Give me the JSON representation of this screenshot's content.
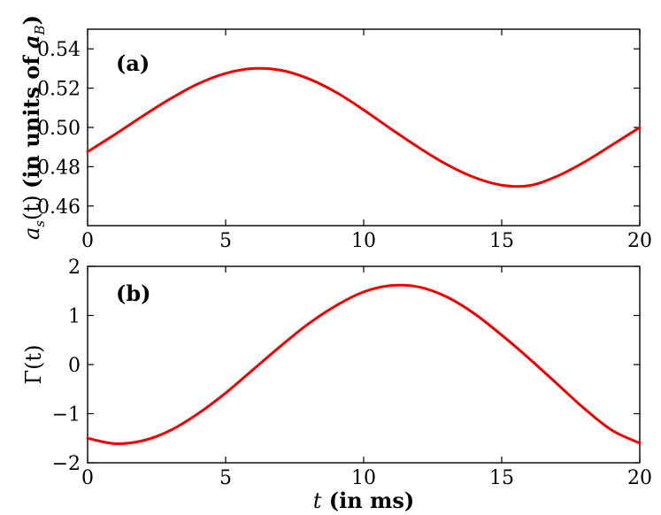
{
  "colors": {
    "curve": "#ee0000",
    "axes": "#000000",
    "background": "#ffffff"
  },
  "chart_data": [
    {
      "type": "line",
      "panel_label": "(a)",
      "ylabel": "a_s(t) (in units of a_B)",
      "ylabel_parts": {
        "var": "a",
        "sub": "s",
        "arg": "(t) ",
        "bold": "(in units of ",
        "var2": "a",
        "sub2": "B",
        "close": ")"
      },
      "xlim": [
        0,
        20
      ],
      "ylim": [
        0.45,
        0.55
      ],
      "x_ticks": [
        0,
        5,
        10,
        15,
        20
      ],
      "x_tick_labels": [
        "0",
        "5",
        "10",
        "15",
        "20"
      ],
      "y_ticks": [
        0.46,
        0.48,
        0.5,
        0.52,
        0.54
      ],
      "y_tick_labels": [
        "0.46",
        "0.48",
        "0.50",
        "0.52",
        "0.54"
      ],
      "series": [
        {
          "x": [
            0,
            1,
            2,
            3,
            4,
            5,
            6,
            7,
            8,
            9,
            10,
            11,
            12,
            13,
            14,
            15,
            16,
            17,
            18,
            19,
            20
          ],
          "y": [
            0.4876,
            0.4965,
            0.5058,
            0.5146,
            0.5222,
            0.5275,
            0.53,
            0.5291,
            0.5248,
            0.5179,
            0.5089,
            0.4991,
            0.4897,
            0.4812,
            0.4746,
            0.4706,
            0.4704,
            0.4751,
            0.4824,
            0.4911,
            0.5
          ]
        }
      ]
    },
    {
      "type": "line",
      "panel_label": "(b)",
      "ylabel": "Γ(t)",
      "xlabel": "t (in ms)",
      "xlabel_parts": {
        "var": "t",
        "rest": " (in ms)"
      },
      "xlim": [
        0,
        20
      ],
      "ylim": [
        -2,
        2
      ],
      "x_ticks": [
        0,
        5,
        10,
        15,
        20
      ],
      "x_tick_labels": [
        "0",
        "5",
        "10",
        "15",
        "20"
      ],
      "y_ticks": [
        -2,
        -1,
        0,
        1,
        2
      ],
      "y_tick_labels": [
        "−2",
        "−1",
        "0",
        "1",
        "2"
      ],
      "series": [
        {
          "x": [
            0,
            1,
            2,
            3,
            4,
            5,
            6,
            7,
            8,
            9,
            10,
            11,
            12,
            13,
            14,
            15,
            16,
            17,
            18,
            19,
            20
          ],
          "y": [
            -1.5,
            -1.61,
            -1.55,
            -1.34,
            -1.0,
            -0.58,
            -0.1,
            0.38,
            0.83,
            1.2,
            1.48,
            1.61,
            1.58,
            1.38,
            1.04,
            0.6,
            0.12,
            -0.39,
            -0.9,
            -1.34,
            -1.6
          ]
        }
      ]
    }
  ]
}
